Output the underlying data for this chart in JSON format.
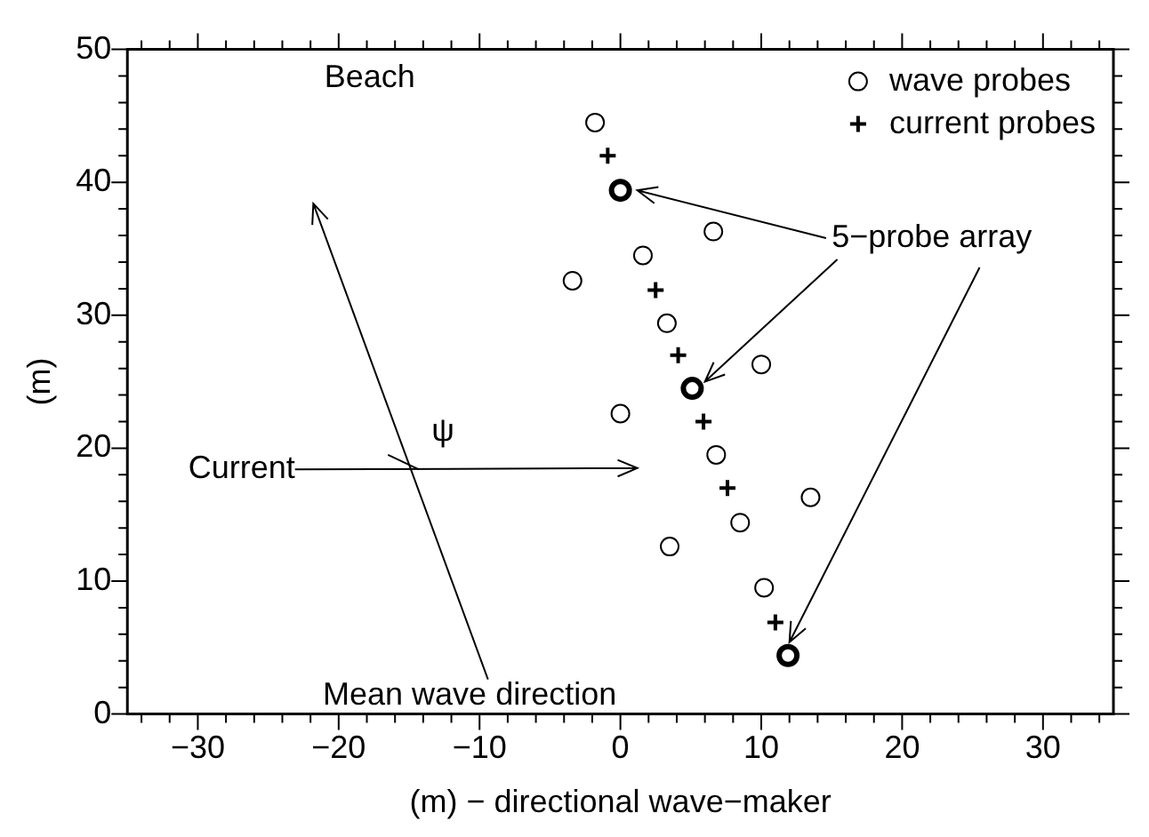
{
  "chart_data": {
    "type": "scatter",
    "xlabel": "(m) − directional wave−maker",
    "ylabel": "(m)",
    "xlim": [
      -35,
      35
    ],
    "ylim": [
      0,
      50
    ],
    "xticks": [
      {
        "value": -34,
        "label": null
      },
      {
        "value": -32,
        "label": null
      },
      -30,
      {
        "value": -28,
        "label": null
      },
      {
        "value": -26,
        "label": null
      },
      {
        "value": -24,
        "label": null
      },
      {
        "value": -22,
        "label": null
      },
      {
        "value": -20,
        "label": "−20"
      },
      {
        "value": -18,
        "label": null
      },
      {
        "value": -16,
        "label": null
      },
      {
        "value": -14,
        "label": null
      },
      {
        "value": -12,
        "label": null
      },
      {
        "value": -10,
        "label": "−10"
      },
      {
        "value": -8,
        "label": null
      },
      {
        "value": -6,
        "label": null
      },
      {
        "value": -4,
        "label": null
      },
      {
        "value": -2,
        "label": null
      },
      0,
      {
        "value": 2,
        "label": null
      },
      {
        "value": 4,
        "label": null
      },
      {
        "value": 6,
        "label": null
      },
      {
        "value": 8,
        "label": null
      },
      10,
      {
        "value": 12,
        "label": null
      },
      {
        "value": 14,
        "label": null
      },
      {
        "value": 16,
        "label": null
      },
      {
        "value": 18,
        "label": null
      },
      20,
      {
        "value": 22,
        "label": null
      },
      {
        "value": 24,
        "label": null
      },
      {
        "value": 26,
        "label": null
      },
      {
        "value": 28,
        "label": null
      },
      30,
      {
        "value": 32,
        "label": null
      },
      {
        "value": 34,
        "label": null
      }
    ],
    "yticks": [
      0,
      {
        "value": 2,
        "label": null
      },
      {
        "value": 4,
        "label": null
      },
      {
        "value": 6,
        "label": null
      },
      {
        "value": 8,
        "label": null
      },
      10,
      {
        "value": 12,
        "label": null
      },
      {
        "value": 14,
        "label": null
      },
      {
        "value": 16,
        "label": null
      },
      {
        "value": 18,
        "label": null
      },
      20,
      {
        "value": 22,
        "label": null
      },
      {
        "value": 24,
        "label": null
      },
      {
        "value": 26,
        "label": null
      },
      {
        "value": 28,
        "label": null
      },
      30,
      {
        "value": 32,
        "label": null
      },
      {
        "value": 34,
        "label": null
      },
      {
        "value": 36,
        "label": null
      },
      {
        "value": 38,
        "label": null
      },
      40,
      {
        "value": 42,
        "label": null
      },
      {
        "value": 44,
        "label": null
      },
      {
        "value": 46,
        "label": null
      },
      {
        "value": 48,
        "label": null
      },
      50
    ],
    "grid": false,
    "legend": "top right",
    "series": [
      {
        "name": "wave probes",
        "color": "#000000",
        "marker": "circle",
        "x": [
          -1.8,
          6.6,
          1.6,
          -3.4,
          3.3,
          10.0,
          0.0,
          6.8,
          13.5,
          8.5,
          3.5,
          10.2
        ],
        "values": [
          44.5,
          36.3,
          34.5,
          32.6,
          29.4,
          26.3,
          22.6,
          19.5,
          16.3,
          14.4,
          12.6,
          9.5
        ]
      },
      {
        "name": "current probes",
        "color": "#000000",
        "marker": "cross",
        "x": [
          -0.9,
          2.5,
          4.1,
          5.9,
          7.6,
          11.0
        ],
        "values": [
          42.0,
          31.9,
          27.0,
          22.0,
          17.0,
          6.9
        ]
      },
      {
        "color": "#000000",
        "marker": "circle",
        "x": [
          0.0,
          5.1,
          11.9
        ],
        "values": [
          39.4,
          24.5,
          4.4
        ]
      }
    ],
    "annotations": [
      "Beach",
      {
        "text": "5−probe array",
        "x": 5.1,
        "y": 24.5
      },
      "Current",
      "ψ",
      "Mean wave direction"
    ]
  }
}
